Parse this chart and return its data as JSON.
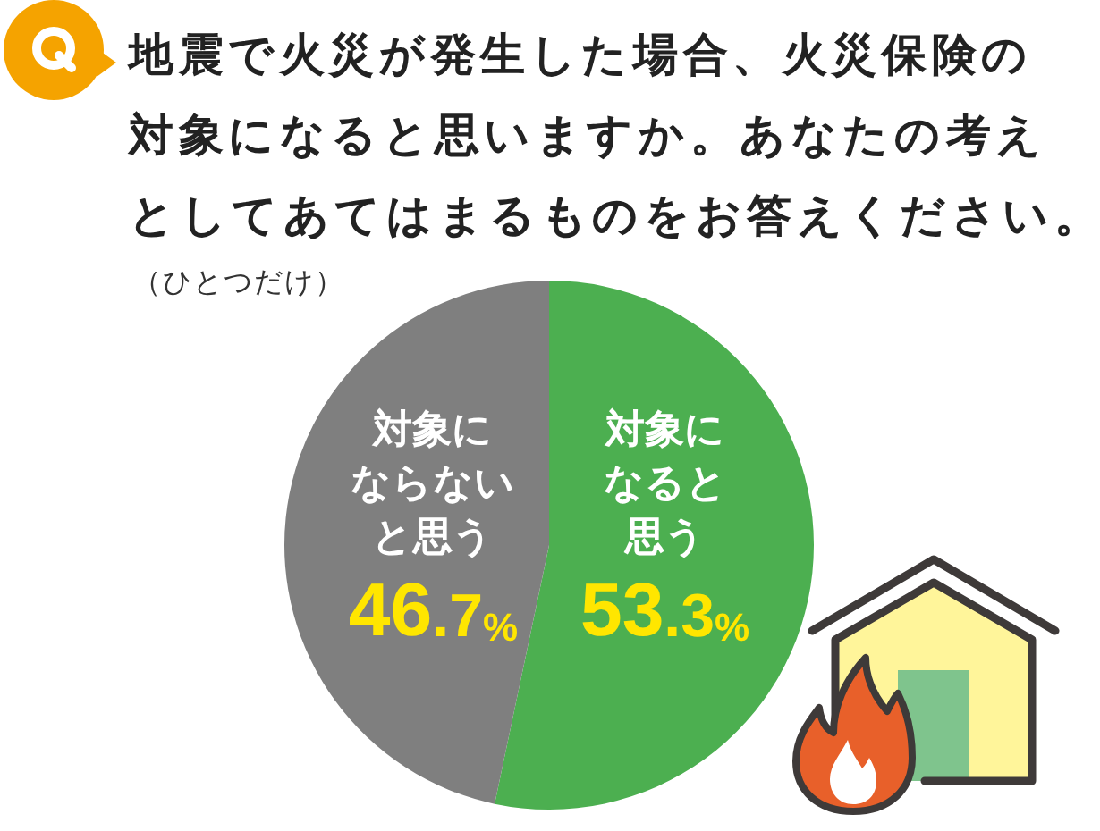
{
  "chart_data": {
    "type": "pie",
    "title": "地震で火災が発生した場合、火災保険の対象になると思いますか。あなたの考えとしてあてはまるものをお答えください。",
    "subtitle": "（ひとつだけ）",
    "categories": [
      "対象になると思う",
      "対象にならないと思う"
    ],
    "values": [
      53.3,
      46.7
    ],
    "colors": [
      "#4caf50",
      "#7f7f7f"
    ],
    "value_labels": [
      "53.3%",
      "46.7%"
    ]
  }
}
